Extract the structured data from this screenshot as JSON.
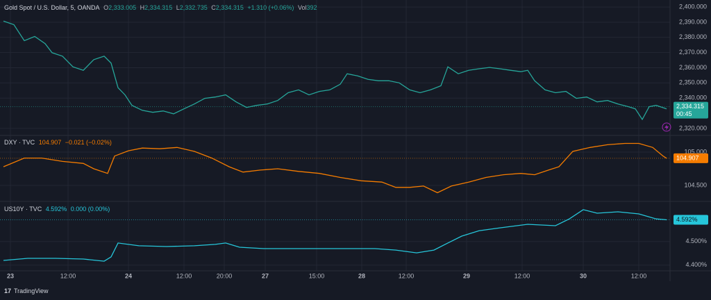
{
  "chart_data": [
    {
      "type": "line",
      "title": "Gold Spot / U.S. Dollar, 5, OANDA",
      "color": "#26a69a",
      "ohlc": [
        {
          "label": "O",
          "value": "2,333.005"
        },
        {
          "label": "H",
          "value": "2,334.315"
        },
        {
          "label": "L",
          "value": "2,332.735"
        },
        {
          "label": "C",
          "value": "2,334.315"
        }
      ],
      "change": "+1.310 (+0.06%)",
      "volume": {
        "label": "Vol",
        "value": "392"
      },
      "last": {
        "value": 2334.315,
        "label": "2,334.315"
      },
      "countdown": "00:45",
      "x": [
        5,
        20,
        35,
        50,
        65,
        75,
        90,
        105,
        120,
        135,
        150,
        160,
        170,
        180,
        190,
        205,
        220,
        235,
        250,
        265,
        280,
        295,
        310,
        325,
        340,
        355,
        370,
        385,
        400,
        415,
        430,
        445,
        460,
        475,
        490,
        500,
        515,
        530,
        545,
        560,
        575,
        590,
        605,
        620,
        635,
        645,
        660,
        675,
        690,
        705,
        720,
        735,
        750,
        760,
        770,
        785,
        800,
        815,
        830,
        845,
        860,
        875,
        890,
        905,
        915,
        925,
        935,
        945,
        960
      ],
      "values": [
        2390.7,
        2388.4,
        2377.8,
        2380.6,
        2375.9,
        2369.9,
        2367.6,
        2360.6,
        2358.3,
        2365.3,
        2367.6,
        2363.0,
        2346.8,
        2342.1,
        2335.2,
        2331.9,
        2330.6,
        2331.5,
        2329.6,
        2332.9,
        2336.1,
        2339.8,
        2340.7,
        2342.1,
        2337.5,
        2333.8,
        2335.2,
        2336.1,
        2338.4,
        2343.5,
        2345.4,
        2342.1,
        2344.4,
        2345.4,
        2349.1,
        2356.0,
        2354.6,
        2352.3,
        2351.4,
        2351.4,
        2350.0,
        2345.4,
        2343.5,
        2345.4,
        2348.1,
        2360.6,
        2356.0,
        2358.3,
        2359.3,
        2360.2,
        2359.3,
        2358.3,
        2357.4,
        2358.3,
        2351.4,
        2345.4,
        2343.5,
        2344.4,
        2339.8,
        2340.7,
        2337.5,
        2338.4,
        2336.1,
        2334.3,
        2332.9,
        2325.9,
        2334.3,
        2335.2,
        2332.9
      ],
      "xlim": [
        0,
        965
      ],
      "ylim": [
        2315.37,
        2404.63
      ],
      "yticks": [
        {
          "value": 2320,
          "label": "2,320.000"
        },
        {
          "value": 2340,
          "label": "2,340.000"
        },
        {
          "value": 2350,
          "label": "2,350.000"
        },
        {
          "value": 2360,
          "label": "2,360.000"
        },
        {
          "value": 2370,
          "label": "2,370.000"
        },
        {
          "value": 2380,
          "label": "2,380.000"
        },
        {
          "value": 2390,
          "label": "2,390.000"
        },
        {
          "value": 2400,
          "label": "2,400.000"
        }
      ],
      "grid": true
    },
    {
      "type": "line",
      "title": "DXY · TVC",
      "color": "#f57c00",
      "readout": "104.907",
      "change": "−0.021 (−0.02%)",
      "last": {
        "value": 104.907,
        "label": "104.907"
      },
      "x": [
        5,
        35,
        60,
        90,
        120,
        135,
        155,
        165,
        185,
        205,
        230,
        255,
        280,
        305,
        330,
        350,
        375,
        400,
        430,
        460,
        490,
        520,
        550,
        570,
        590,
        610,
        630,
        650,
        675,
        700,
        725,
        750,
        770,
        790,
        805,
        825,
        850,
        875,
        900,
        920,
        940,
        955,
        960
      ],
      "values": [
        104.78,
        104.91,
        104.91,
        104.86,
        104.83,
        104.75,
        104.68,
        104.94,
        105.02,
        105.06,
        105.05,
        105.07,
        105.01,
        104.91,
        104.78,
        104.7,
        104.73,
        104.75,
        104.71,
        104.68,
        104.62,
        104.57,
        104.55,
        104.47,
        104.47,
        104.49,
        104.39,
        104.49,
        104.55,
        104.62,
        104.66,
        104.68,
        104.66,
        104.73,
        104.78,
        105.01,
        105.07,
        105.11,
        105.13,
        105.13,
        105.07,
        104.94,
        104.907
      ],
      "xlim": [
        0,
        965
      ],
      "ylim": [
        104.26,
        105.25
      ],
      "yticks": [
        {
          "value": 104.5,
          "label": "104.500"
        },
        {
          "value": 105,
          "label": "105.000"
        }
      ],
      "grid": true
    },
    {
      "type": "line",
      "title": "US10Y · TVC",
      "color": "#26c6da",
      "readout": "4.592%",
      "change": "0.000 (0.00%)",
      "last": {
        "value": 4.592,
        "label": "4.592%"
      },
      "x": [
        5,
        40,
        80,
        120,
        150,
        160,
        170,
        200,
        240,
        280,
        310,
        325,
        345,
        380,
        450,
        540,
        570,
        600,
        625,
        645,
        665,
        690,
        720,
        760,
        800,
        820,
        840,
        860,
        890,
        920,
        945,
        960
      ],
      "values": [
        4.42,
        4.429,
        4.429,
        4.426,
        4.417,
        4.435,
        4.494,
        4.482,
        4.479,
        4.482,
        4.488,
        4.494,
        4.476,
        4.47,
        4.47,
        4.47,
        4.464,
        4.452,
        4.464,
        4.494,
        4.523,
        4.546,
        4.558,
        4.573,
        4.567,
        4.596,
        4.635,
        4.62,
        4.626,
        4.617,
        4.596,
        4.592
      ],
      "xlim": [
        0,
        965
      ],
      "ylim": [
        4.376,
        4.67
      ],
      "yticks": [
        {
          "value": 4.4,
          "label": "4.400%"
        },
        {
          "value": 4.5,
          "label": "4.500%"
        }
      ],
      "xticks": [
        {
          "value": 15,
          "label": "23"
        },
        {
          "value": 98,
          "label": "12:00"
        },
        {
          "value": 185,
          "label": "24"
        },
        {
          "value": 265,
          "label": "12:00"
        },
        {
          "value": 323,
          "label": "20:00"
        },
        {
          "value": 382,
          "label": "27"
        },
        {
          "value": 456,
          "label": "15:00"
        },
        {
          "value": 521,
          "label": "28"
        },
        {
          "value": 585,
          "label": "12:00"
        },
        {
          "value": 672,
          "label": "29"
        },
        {
          "value": 752,
          "label": "12:00"
        },
        {
          "value": 840,
          "label": "30"
        },
        {
          "value": 920,
          "label": "12:00"
        }
      ],
      "grid": true
    }
  ],
  "footer": {
    "brand": "TradingView"
  }
}
